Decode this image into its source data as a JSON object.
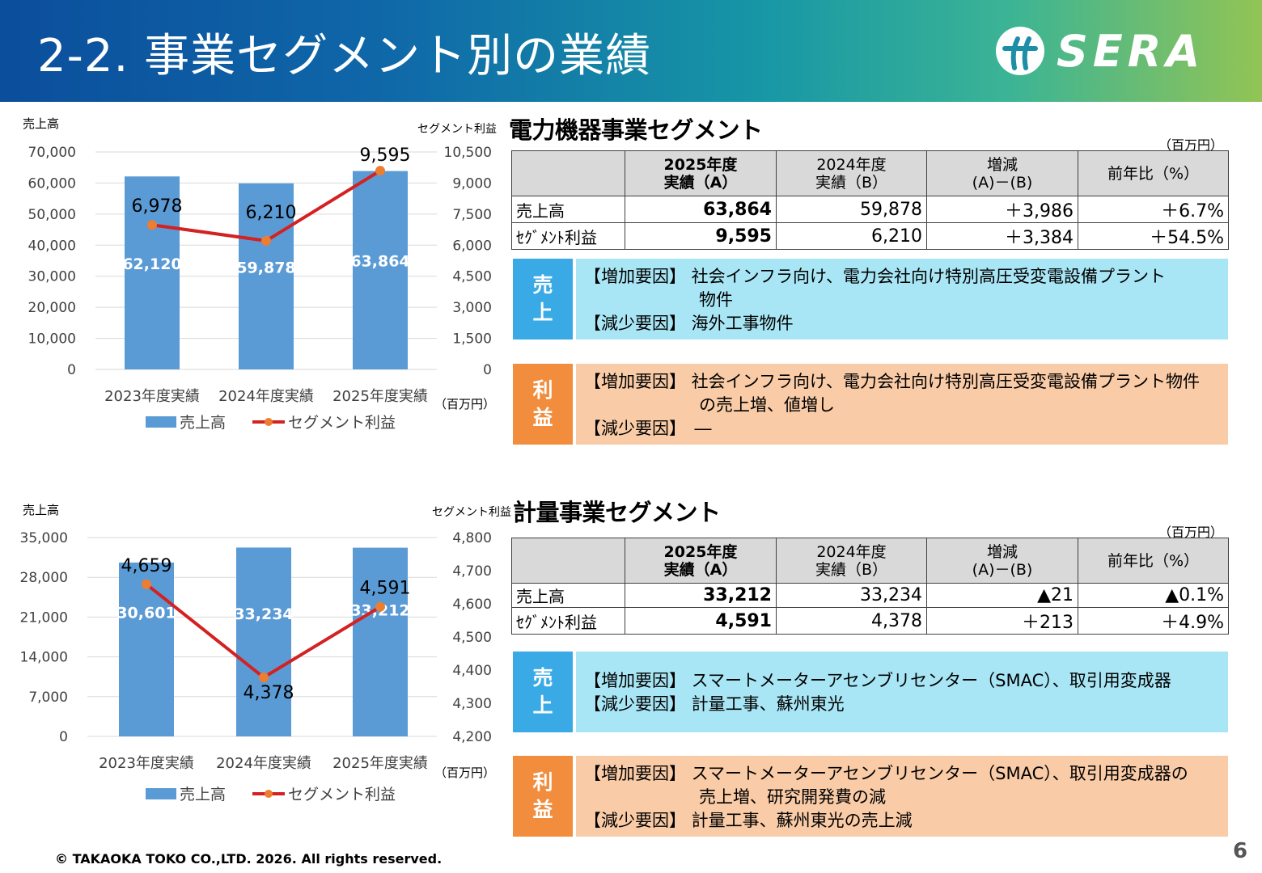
{
  "header": {
    "title": "2-2. 事業セグメント別の業績",
    "logo": "SERA"
  },
  "colors": {
    "bar": "#5b9bd5",
    "line": "#d42121",
    "marker": "#ed7d31",
    "sales_tag": "#3aaae6",
    "sales_bg": "#a9e6f5",
    "profit_tag": "#f18d3c",
    "profit_bg": "#f9cba6"
  },
  "segments": [
    {
      "title": "電力機器事業セグメント",
      "unit": "（百万円）",
      "table": {
        "headers": [
          {
            "l1": "2025年度",
            "l2": "実績（A）"
          },
          {
            "l1": "2024年度",
            "l2": "実績（B）"
          },
          {
            "l1": "増減",
            "l2": "(A)－(B)"
          },
          {
            "l1": "前年比（%）",
            "l2": ""
          }
        ],
        "rows": [
          {
            "label": "売上高",
            "values": [
              "63,864",
              "59,878",
              "＋3,986",
              "＋6.7%"
            ]
          },
          {
            "label": "ｾｸﾞﾒﾝﾄ利益",
            "values": [
              "9,595",
              "6,210",
              "＋3,384",
              "＋54.5%"
            ]
          }
        ]
      },
      "sales_box": {
        "tag1": "売",
        "tag2": "上",
        "lines": [
          "【増加要因】 社会インフラ向け、電力会社向け特別高圧受変電設備プラント",
          "物件",
          "【減少要因】 海外工事物件"
        ]
      },
      "profit_box": {
        "tag1": "利",
        "tag2": "益",
        "lines": [
          "【増加要因】 社会インフラ向け、電力会社向け特別高圧受変電設備プラント物件",
          "の売上増、値増し",
          "【減少要因】　―"
        ]
      }
    },
    {
      "title": "計量事業セグメント",
      "unit": "（百万円）",
      "table": {
        "headers": [
          {
            "l1": "2025年度",
            "l2": "実績（A）"
          },
          {
            "l1": "2024年度",
            "l2": "実績（B）"
          },
          {
            "l1": "増減",
            "l2": "(A)－(B)"
          },
          {
            "l1": "前年比（%）",
            "l2": ""
          }
        ],
        "rows": [
          {
            "label": "売上高",
            "values": [
              "33,212",
              "33,234",
              "▲21",
              "▲0.1%"
            ]
          },
          {
            "label": "ｾｸﾞﾒﾝﾄ利益",
            "values": [
              "4,591",
              "4,378",
              "＋213",
              "＋4.9%"
            ]
          }
        ]
      },
      "sales_box": {
        "tag1": "売",
        "tag2": "上",
        "lines": [
          "【増加要因】 スマートメーターアセンブリセンター（SMAC）、取引用変成器",
          "【減少要因】 計量工事、蘇州東光"
        ]
      },
      "profit_box": {
        "tag1": "利",
        "tag2": "益",
        "lines": [
          "【増加要因】 スマートメーターアセンブリセンター（SMAC）、取引用変成器の",
          "売上増、研究開発費の減",
          "【減少要因】 計量工事、蘇州東光の売上減"
        ]
      }
    }
  ],
  "chart_data": [
    {
      "type": "bar+line",
      "categories": [
        "2023年度実績",
        "2024年度実績",
        "2025年度実績"
      ],
      "series": [
        {
          "name": "売上高",
          "type": "bar",
          "axis": "left",
          "values": [
            62120,
            59878,
            63864
          ],
          "labels": [
            "62,120",
            "59,878",
            "63,864"
          ]
        },
        {
          "name": "セグメント利益",
          "type": "line",
          "axis": "right",
          "values": [
            6978,
            6210,
            9595
          ],
          "labels": [
            "6,978",
            "6,210",
            "9,595"
          ]
        }
      ],
      "ylabel_left": "売上高",
      "ylabel_right": "セグメント利益",
      "unit": "（百万円）",
      "ylim_left": [
        0,
        70000
      ],
      "ylim_right": [
        0,
        10500
      ],
      "yticks_left": [
        "0",
        "10,000",
        "20,000",
        "30,000",
        "40,000",
        "50,000",
        "60,000",
        "70,000"
      ],
      "yticks_right": [
        "0",
        "1,500",
        "3,000",
        "4,500",
        "6,000",
        "7,500",
        "9,000",
        "10,500"
      ],
      "legend_position": "bottom"
    },
    {
      "type": "bar+line",
      "categories": [
        "2023年度実績",
        "2024年度実績",
        "2025年度実績"
      ],
      "series": [
        {
          "name": "売上高",
          "type": "bar",
          "axis": "left",
          "values": [
            30601,
            33234,
            33212
          ],
          "labels": [
            "30,601",
            "33,234",
            "33,212"
          ]
        },
        {
          "name": "セグメント利益",
          "type": "line",
          "axis": "right",
          "values": [
            4659,
            4378,
            4591
          ],
          "labels": [
            "4,659",
            "4,378",
            "4,591"
          ]
        }
      ],
      "ylabel_left": "売上高",
      "ylabel_right": "セグメント利益",
      "unit": "（百万円）",
      "ylim_left": [
        0,
        35000
      ],
      "ylim_right": [
        4200,
        4800
      ],
      "yticks_left": [
        "0",
        "7,000",
        "14,000",
        "21,000",
        "28,000",
        "35,000"
      ],
      "yticks_right": [
        "4,200",
        "4,300",
        "4,400",
        "4,500",
        "4,600",
        "4,700",
        "4,800"
      ],
      "legend_position": "bottom"
    }
  ],
  "footer": {
    "copyright": "© TAKAOKA TOKO CO.,LTD. 2026. All rights reserved.",
    "page": "6"
  }
}
